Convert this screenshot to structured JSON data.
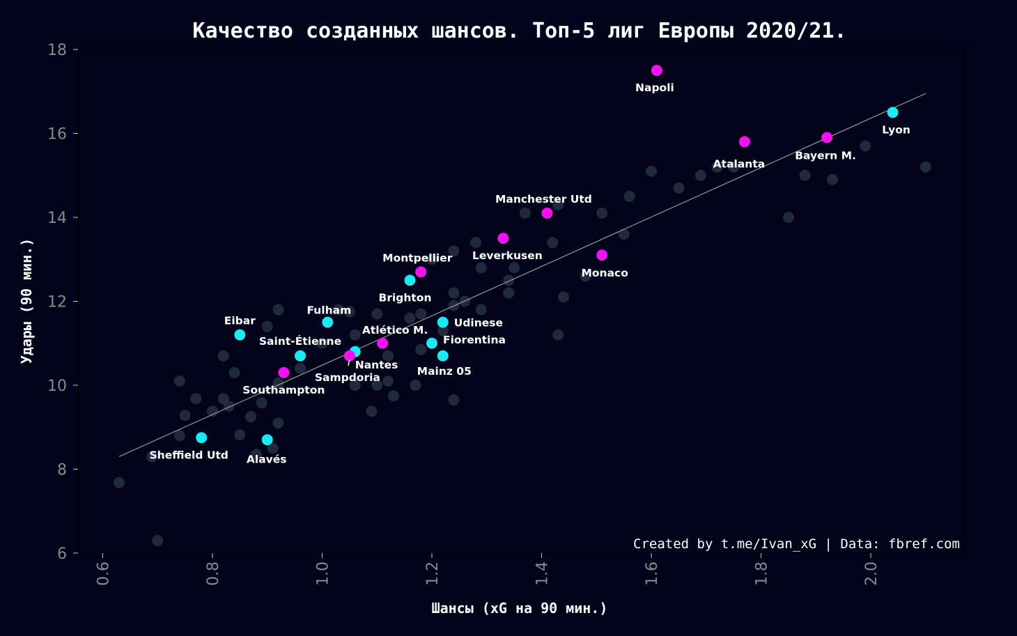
{
  "chart_data": {
    "type": "scatter",
    "title": "Качество созданных шансов. Топ-5 лиг Европы 2020/21.",
    "xlabel": "Шансы (xG на 90 мин.)",
    "ylabel": "Удары (90 мин.)",
    "xlim": [
      0.555,
      2.17
    ],
    "ylim": [
      6,
      18
    ],
    "xticks": [
      "0.6",
      "0.8",
      "1.0",
      "1.2",
      "1.4",
      "1.6",
      "1.8",
      "2.0"
    ],
    "yticks": [
      "6",
      "8",
      "10",
      "12",
      "14",
      "16",
      "18"
    ],
    "grid": false,
    "credit": "Created by t.me/Ivan_xG | Data: fbref.com",
    "colors": {
      "background": "#03031b",
      "background_points": "#2a3a4a",
      "highlight_cyan": "#1ee8f2",
      "highlight_magenta": "#ee14ee",
      "trend_line": "#9a9a9a"
    },
    "trend_line": {
      "x": [
        0.63,
        2.1
      ],
      "y": [
        8.3,
        16.95
      ]
    },
    "background_points": [
      [
        0.63,
        7.68
      ],
      [
        0.69,
        8.3
      ],
      [
        0.7,
        6.3
      ],
      [
        0.74,
        10.1
      ],
      [
        0.74,
        8.8
      ],
      [
        0.75,
        9.28
      ],
      [
        0.77,
        9.68
      ],
      [
        0.8,
        9.38
      ],
      [
        0.82,
        10.7
      ],
      [
        0.82,
        9.68
      ],
      [
        0.83,
        9.5
      ],
      [
        0.84,
        10.3
      ],
      [
        0.85,
        8.82
      ],
      [
        0.87,
        9.25
      ],
      [
        0.88,
        8.35
      ],
      [
        0.89,
        9.58
      ],
      [
        0.9,
        11.4
      ],
      [
        0.91,
        8.5
      ],
      [
        0.92,
        11.8
      ],
      [
        0.92,
        9.1
      ],
      [
        0.92,
        10.05
      ],
      [
        0.96,
        10.4
      ],
      [
        1.0,
        11.0
      ],
      [
        1.03,
        11.8
      ],
      [
        1.05,
        11.75
      ],
      [
        1.06,
        11.2
      ],
      [
        1.06,
        10.0
      ],
      [
        1.09,
        9.38
      ],
      [
        1.1,
        11.7
      ],
      [
        1.1,
        10.0
      ],
      [
        1.12,
        10.7
      ],
      [
        1.12,
        10.1
      ],
      [
        1.13,
        9.75
      ],
      [
        1.16,
        11.6
      ],
      [
        1.17,
        10.0
      ],
      [
        1.18,
        11.7
      ],
      [
        1.18,
        10.85
      ],
      [
        1.2,
        13.0
      ],
      [
        1.22,
        11.3
      ],
      [
        1.24,
        13.2
      ],
      [
        1.24,
        12.2
      ],
      [
        1.24,
        11.9
      ],
      [
        1.24,
        9.65
      ],
      [
        1.26,
        12.0
      ],
      [
        1.28,
        13.4
      ],
      [
        1.29,
        12.8
      ],
      [
        1.29,
        11.8
      ],
      [
        1.34,
        12.5
      ],
      [
        1.34,
        12.2
      ],
      [
        1.35,
        12.8
      ],
      [
        1.37,
        14.1
      ],
      [
        1.42,
        13.4
      ],
      [
        1.43,
        14.3
      ],
      [
        1.43,
        11.2
      ],
      [
        1.44,
        12.1
      ],
      [
        1.48,
        12.6
      ],
      [
        1.51,
        14.1
      ],
      [
        1.55,
        13.6
      ],
      [
        1.56,
        14.5
      ],
      [
        1.6,
        15.1
      ],
      [
        1.65,
        14.7
      ],
      [
        1.69,
        15.0
      ],
      [
        1.72,
        15.2
      ],
      [
        1.75,
        15.2
      ],
      [
        1.85,
        14.0
      ],
      [
        1.88,
        15.0
      ],
      [
        1.93,
        14.9
      ],
      [
        1.99,
        15.7
      ],
      [
        2.1,
        15.2
      ]
    ],
    "series": [
      {
        "color": "cyan",
        "points": [
          {
            "label": "Lyon",
            "x": 2.04,
            "y": 16.5
          },
          {
            "label": "Brighton",
            "x": 1.16,
            "y": 12.5
          },
          {
            "label": "Fulham",
            "x": 1.01,
            "y": 11.5
          },
          {
            "label": "Udinese",
            "x": 1.22,
            "y": 11.5
          },
          {
            "label": "Eibar",
            "x": 0.85,
            "y": 11.2
          },
          {
            "label": "Fiorentina",
            "x": 1.2,
            "y": 11.0
          },
          {
            "label": "Nantes",
            "x": 1.06,
            "y": 10.8
          },
          {
            "label": "Saint-Étienne",
            "x": 0.96,
            "y": 10.7
          },
          {
            "label": "Mainz 05",
            "x": 1.22,
            "y": 10.7
          },
          {
            "label": "Sheffield Utd",
            "x": 0.78,
            "y": 8.75
          },
          {
            "label": "Alavés",
            "x": 0.9,
            "y": 8.7
          }
        ]
      },
      {
        "color": "magenta",
        "points": [
          {
            "label": "Napoli",
            "x": 1.61,
            "y": 17.5
          },
          {
            "label": "Bayern M.",
            "x": 1.92,
            "y": 15.9
          },
          {
            "label": "Atalanta",
            "x": 1.77,
            "y": 15.8
          },
          {
            "label": "Manchester Utd",
            "x": 1.41,
            "y": 14.1
          },
          {
            "label": "Leverkusen",
            "x": 1.33,
            "y": 13.5
          },
          {
            "label": "Monaco",
            "x": 1.51,
            "y": 13.1
          },
          {
            "label": "Montpellier",
            "x": 1.18,
            "y": 12.7
          },
          {
            "label": "Atlético M.",
            "x": 1.11,
            "y": 11.0
          },
          {
            "label": "Sampdoria",
            "x": 1.05,
            "y": 10.7
          },
          {
            "label": "Southampton",
            "x": 0.93,
            "y": 10.3
          }
        ]
      }
    ]
  }
}
